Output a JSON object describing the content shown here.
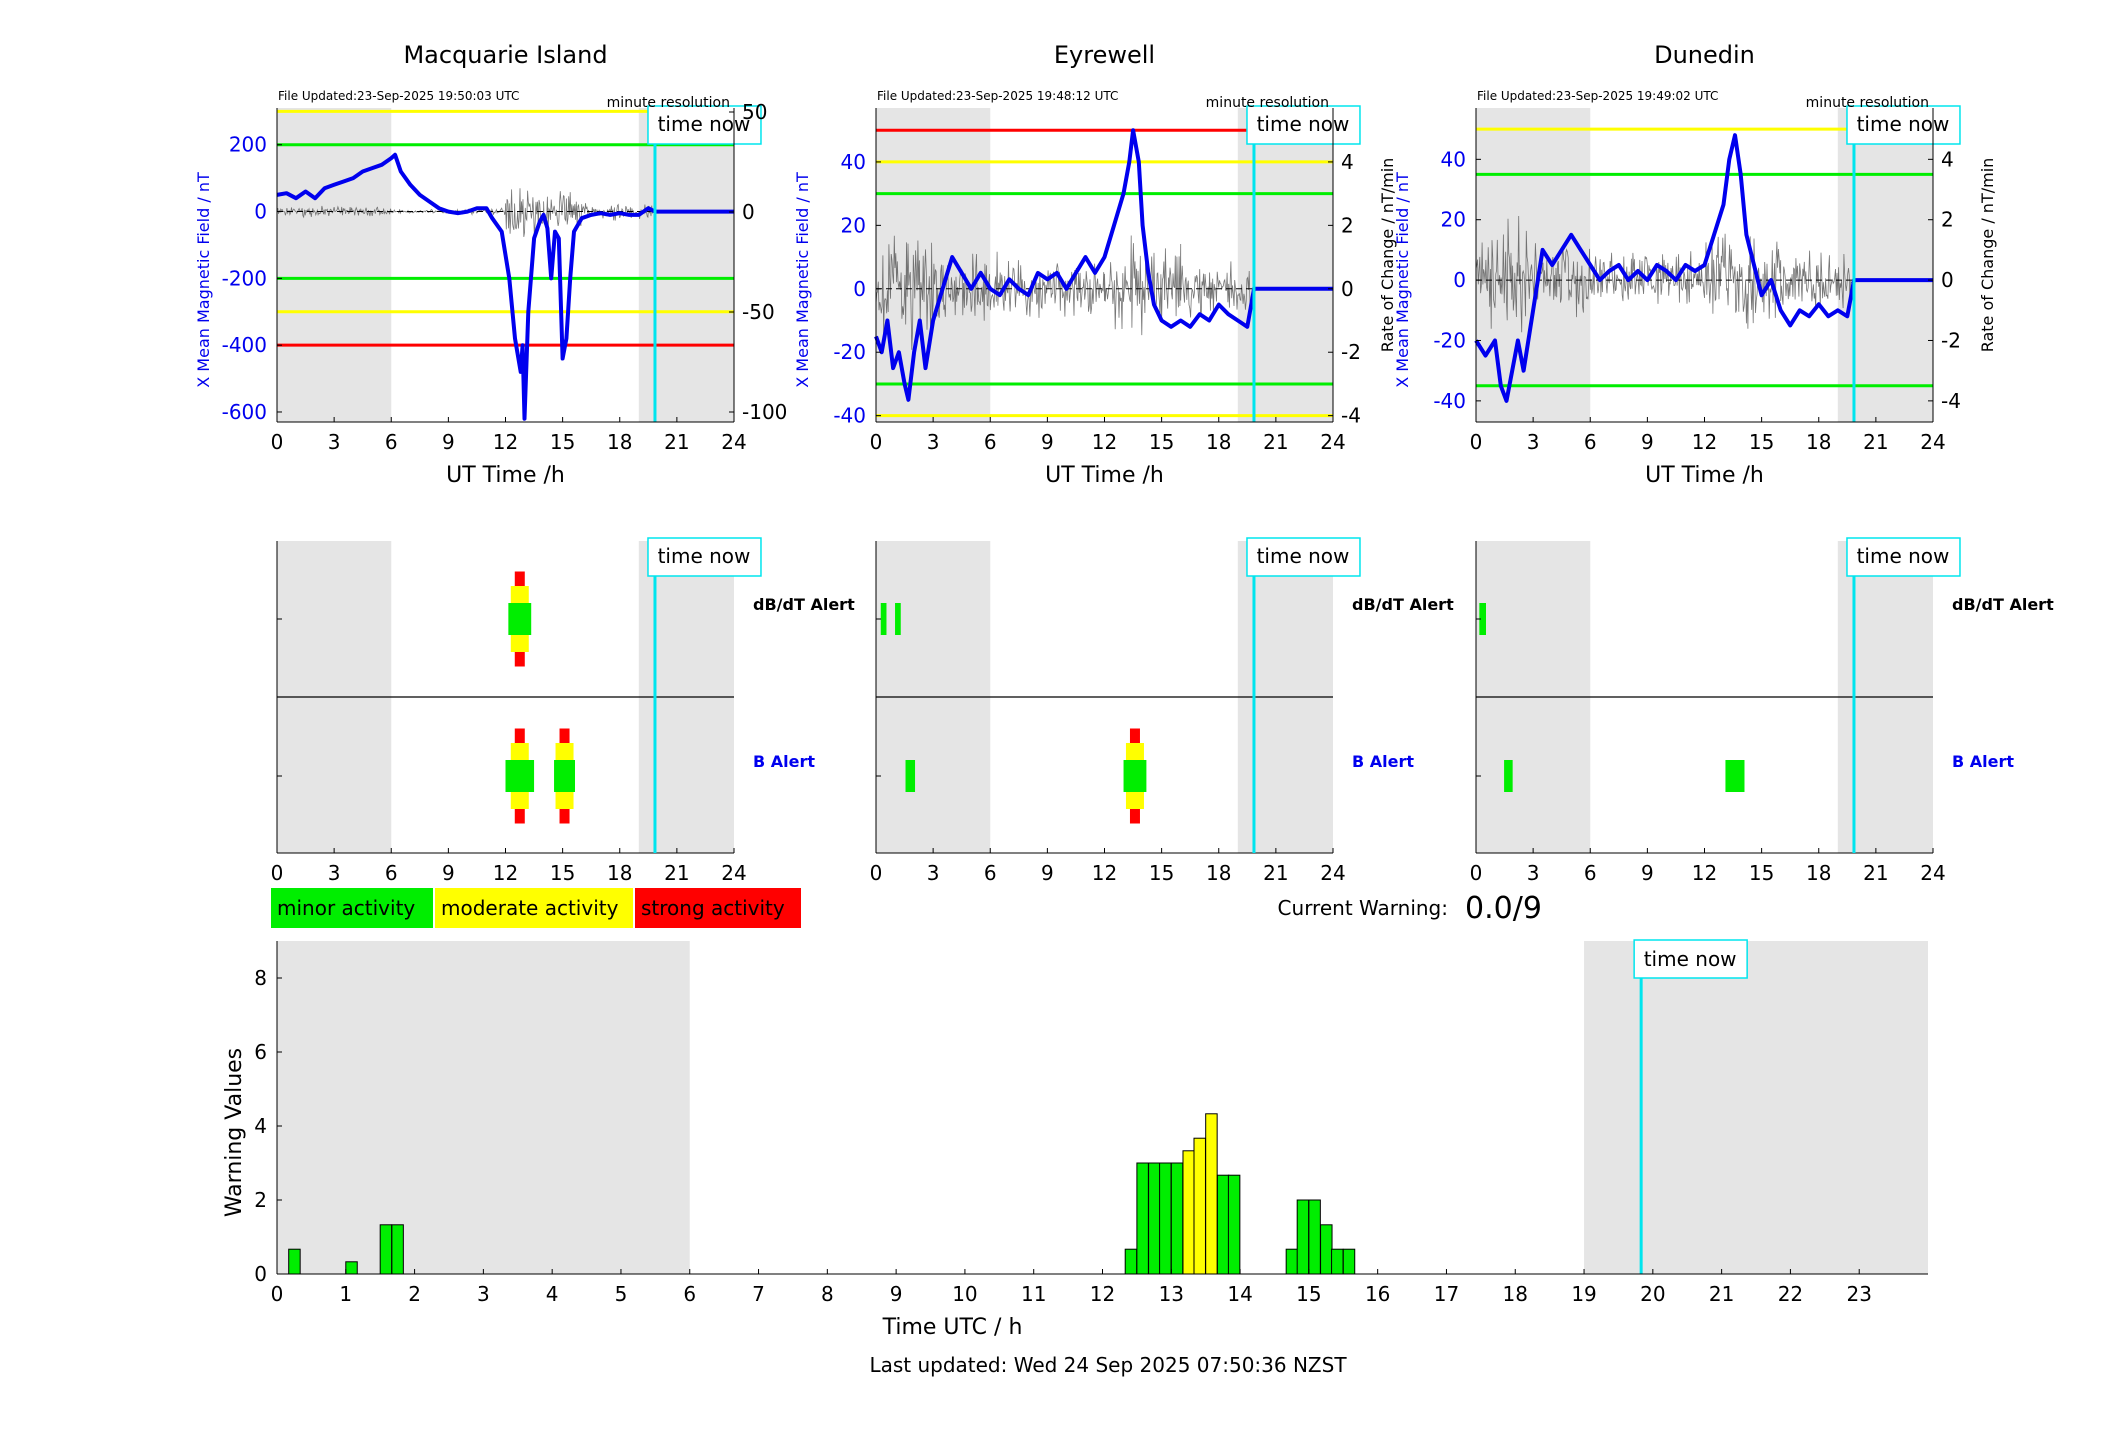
{
  "colors": {
    "shade": "#e5e5e5",
    "minor": "#00ee00",
    "moderate": "#ffff00",
    "strong": "#ff0000",
    "field": "#0000ee",
    "axis_blue": "#0000ee",
    "time_now": "#00e5ee",
    "grid_line": "#00ee00"
  },
  "labels": {
    "x_axis": "UT Time /h",
    "left_y_axis": "X Mean Magnetic Field / nT",
    "right_y_axis": "Rate of Change / nT/min",
    "time_now": "time now",
    "minute_resolution": "minute resolution",
    "dbdt_alert": "dB/dT Alert",
    "b_alert": "B Alert",
    "current_warning_label": "Current Warning:",
    "current_warning_value": "0.0/9",
    "bottom_xlabel": "Time UTC / h",
    "bottom_ylabel": "Warning Values",
    "last_updated": "Last updated: Wed 24 Sep 2025 07:50:36 NZST"
  },
  "legend": [
    {
      "label": "minor activity",
      "color": "#00ee00"
    },
    {
      "label": "moderate activity",
      "color": "#ffff00"
    },
    {
      "label": "strong activity",
      "color": "#ff0000"
    }
  ],
  "chart_data": [
    {
      "type": "line",
      "title": "Macquarie Island",
      "file_updated": "File Updated:23-Sep-2025 19:50:03 UTC",
      "xlabel": "UT Time /h",
      "ylabel": "X Mean Magnetic Field / nT",
      "ylabel_right": "",
      "xlim": [
        0,
        24
      ],
      "ylim": [
        -630,
        310
      ],
      "ylim_right": [
        -105,
        52
      ],
      "xticks": [
        0,
        3,
        6,
        9,
        12,
        15,
        18,
        21,
        24
      ],
      "yticks": [
        200,
        0,
        -200,
        -400,
        -600
      ],
      "yticks_right": [
        50,
        0,
        -50,
        -100
      ],
      "shaded": [
        [
          0,
          6
        ],
        [
          19,
          24
        ]
      ],
      "time_now": 19.85,
      "thresholds": [
        {
          "value": 300,
          "color": "#ffff00"
        },
        {
          "value": 200,
          "color": "#00ee00"
        },
        {
          "value": -200,
          "color": "#00ee00"
        },
        {
          "value": -300,
          "color": "#ffff00"
        },
        {
          "value": -400,
          "color": "#ff0000"
        }
      ],
      "field": [
        [
          0,
          50
        ],
        [
          0.5,
          55
        ],
        [
          1,
          40
        ],
        [
          1.5,
          60
        ],
        [
          2,
          40
        ],
        [
          2.5,
          70
        ],
        [
          3,
          80
        ],
        [
          3.5,
          90
        ],
        [
          4,
          100
        ],
        [
          4.5,
          120
        ],
        [
          5,
          130
        ],
        [
          5.5,
          140
        ],
        [
          6,
          160
        ],
        [
          6.2,
          170
        ],
        [
          6.5,
          120
        ],
        [
          7,
          80
        ],
        [
          7.5,
          50
        ],
        [
          8,
          30
        ],
        [
          8.5,
          10
        ],
        [
          9,
          0
        ],
        [
          9.5,
          -5
        ],
        [
          10,
          0
        ],
        [
          10.5,
          10
        ],
        [
          11,
          10
        ],
        [
          11.3,
          -20
        ],
        [
          11.8,
          -60
        ],
        [
          12.2,
          -200
        ],
        [
          12.5,
          -380
        ],
        [
          12.8,
          -480
        ],
        [
          12.9,
          -400
        ],
        [
          13,
          -620
        ],
        [
          13.2,
          -300
        ],
        [
          13.5,
          -80
        ],
        [
          13.8,
          -30
        ],
        [
          14,
          -10
        ],
        [
          14.2,
          -50
        ],
        [
          14.4,
          -200
        ],
        [
          14.6,
          -60
        ],
        [
          14.8,
          -80
        ],
        [
          15,
          -440
        ],
        [
          15.2,
          -380
        ],
        [
          15.4,
          -200
        ],
        [
          15.6,
          -60
        ],
        [
          16,
          -20
        ],
        [
          16.5,
          -10
        ],
        [
          17,
          -5
        ],
        [
          17.5,
          -10
        ],
        [
          18,
          -5
        ],
        [
          18.5,
          -10
        ],
        [
          19,
          -10
        ],
        [
          19.5,
          10
        ],
        [
          19.85,
          0
        ],
        [
          24,
          0
        ]
      ],
      "noise_segments": [
        [
          0,
          6,
          15
        ],
        [
          6,
          10,
          6
        ],
        [
          10,
          12,
          10
        ],
        [
          12,
          14,
          80
        ],
        [
          14,
          16,
          55
        ],
        [
          16,
          19.85,
          25
        ]
      ]
    },
    {
      "type": "line",
      "title": "Eyrewell",
      "file_updated": "File Updated:23-Sep-2025 19:48:12 UTC",
      "xlabel": "UT Time /h",
      "ylabel": "X Mean Magnetic Field / nT",
      "ylabel_right": "Rate of Change / nT/min",
      "xlim": [
        0,
        24
      ],
      "ylim": [
        -42,
        57
      ],
      "ylim_right": [
        -4.2,
        5.7
      ],
      "xticks": [
        0,
        3,
        6,
        9,
        12,
        15,
        18,
        21,
        24
      ],
      "yticks": [
        40,
        20,
        0,
        -20,
        -40
      ],
      "yticks_right": [
        4,
        2,
        0,
        -2,
        -4
      ],
      "shaded": [
        [
          0,
          6
        ],
        [
          19,
          24
        ]
      ],
      "time_now": 19.85,
      "thresholds": [
        {
          "value": 50,
          "color": "#ff0000"
        },
        {
          "value": 40,
          "color": "#ffff00"
        },
        {
          "value": 30,
          "color": "#00ee00"
        },
        {
          "value": -30,
          "color": "#00ee00"
        },
        {
          "value": -40,
          "color": "#ffff00"
        }
      ],
      "field": [
        [
          0,
          -15
        ],
        [
          0.3,
          -20
        ],
        [
          0.6,
          -10
        ],
        [
          0.9,
          -25
        ],
        [
          1.2,
          -20
        ],
        [
          1.5,
          -30
        ],
        [
          1.7,
          -35
        ],
        [
          2,
          -20
        ],
        [
          2.3,
          -10
        ],
        [
          2.6,
          -25
        ],
        [
          3,
          -10
        ],
        [
          3.5,
          0
        ],
        [
          4,
          10
        ],
        [
          4.5,
          5
        ],
        [
          5,
          0
        ],
        [
          5.5,
          5
        ],
        [
          6,
          0
        ],
        [
          6.5,
          -2
        ],
        [
          7,
          3
        ],
        [
          7.5,
          0
        ],
        [
          8,
          -2
        ],
        [
          8.5,
          5
        ],
        [
          9,
          3
        ],
        [
          9.5,
          5
        ],
        [
          10,
          0
        ],
        [
          10.5,
          5
        ],
        [
          11,
          10
        ],
        [
          11.5,
          5
        ],
        [
          12,
          10
        ],
        [
          12.5,
          20
        ],
        [
          13,
          30
        ],
        [
          13.3,
          40
        ],
        [
          13.5,
          50
        ],
        [
          13.8,
          40
        ],
        [
          14,
          20
        ],
        [
          14.3,
          5
        ],
        [
          14.6,
          -5
        ],
        [
          15,
          -10
        ],
        [
          15.5,
          -12
        ],
        [
          16,
          -10
        ],
        [
          16.5,
          -12
        ],
        [
          17,
          -8
        ],
        [
          17.5,
          -10
        ],
        [
          18,
          -5
        ],
        [
          18.5,
          -8
        ],
        [
          19,
          -10
        ],
        [
          19.5,
          -12
        ],
        [
          19.85,
          0
        ],
        [
          24,
          0
        ]
      ],
      "noise_segments": [
        [
          0,
          3,
          18
        ],
        [
          3,
          7,
          10
        ],
        [
          7,
          12,
          8
        ],
        [
          12,
          16,
          14
        ],
        [
          16,
          19.85,
          8
        ]
      ]
    },
    {
      "type": "line",
      "title": "Dunedin",
      "file_updated": "File Updated:23-Sep-2025 19:49:02 UTC",
      "xlabel": "UT Time /h",
      "ylabel": "X Mean Magnetic Field / nT",
      "ylabel_right": "Rate of Change / nT/min",
      "xlim": [
        0,
        24
      ],
      "ylim": [
        -47,
        57
      ],
      "ylim_right": [
        -4.7,
        5.7
      ],
      "xticks": [
        0,
        3,
        6,
        9,
        12,
        15,
        18,
        21,
        24
      ],
      "yticks": [
        40,
        20,
        0,
        -20,
        -40
      ],
      "yticks_right": [
        4,
        2,
        0,
        -2,
        -4
      ],
      "shaded": [
        [
          0,
          6
        ],
        [
          19,
          24
        ]
      ],
      "time_now": 19.85,
      "thresholds": [
        {
          "value": 50,
          "color": "#ffff00"
        },
        {
          "value": 35,
          "color": "#00ee00"
        },
        {
          "value": -35,
          "color": "#00ee00"
        }
      ],
      "field": [
        [
          0,
          -20
        ],
        [
          0.5,
          -25
        ],
        [
          1,
          -20
        ],
        [
          1.3,
          -35
        ],
        [
          1.6,
          -40
        ],
        [
          1.9,
          -30
        ],
        [
          2.2,
          -20
        ],
        [
          2.5,
          -30
        ],
        [
          3,
          -10
        ],
        [
          3.5,
          10
        ],
        [
          4,
          5
        ],
        [
          4.5,
          10
        ],
        [
          5,
          15
        ],
        [
          5.5,
          10
        ],
        [
          6,
          5
        ],
        [
          6.5,
          0
        ],
        [
          7,
          3
        ],
        [
          7.5,
          5
        ],
        [
          8,
          0
        ],
        [
          8.5,
          3
        ],
        [
          9,
          0
        ],
        [
          9.5,
          5
        ],
        [
          10,
          3
        ],
        [
          10.5,
          0
        ],
        [
          11,
          5
        ],
        [
          11.5,
          3
        ],
        [
          12,
          5
        ],
        [
          12.5,
          15
        ],
        [
          13,
          25
        ],
        [
          13.3,
          40
        ],
        [
          13.6,
          48
        ],
        [
          13.9,
          35
        ],
        [
          14.2,
          15
        ],
        [
          14.6,
          5
        ],
        [
          15,
          -5
        ],
        [
          15.5,
          0
        ],
        [
          16,
          -10
        ],
        [
          16.5,
          -15
        ],
        [
          17,
          -10
        ],
        [
          17.5,
          -12
        ],
        [
          18,
          -8
        ],
        [
          18.5,
          -12
        ],
        [
          19,
          -10
        ],
        [
          19.5,
          -12
        ],
        [
          19.85,
          0
        ],
        [
          24,
          0
        ]
      ],
      "noise_segments": [
        [
          0,
          3,
          18
        ],
        [
          3,
          7,
          10
        ],
        [
          7,
          12,
          8
        ],
        [
          12,
          16,
          14
        ],
        [
          16,
          19.85,
          8
        ]
      ]
    }
  ],
  "alert_panels": [
    {
      "dbdt": [
        {
          "t": 12.75,
          "w": 1.2,
          "level": "minor",
          "strong": true,
          "moderate": true
        }
      ],
      "b": [
        {
          "t": 12.75,
          "w": 1.5,
          "level": "minor",
          "strong": true,
          "moderate": true
        },
        {
          "t": 15.1,
          "w": 1.1,
          "level": "minor",
          "strong": true,
          "moderate": true
        }
      ]
    },
    {
      "dbdt": [
        {
          "t": 0.4,
          "w": 0.3,
          "level": "minor"
        },
        {
          "t": 1.15,
          "w": 0.3,
          "level": "minor"
        }
      ],
      "b": [
        {
          "t": 1.8,
          "w": 0.5,
          "level": "minor"
        },
        {
          "t": 13.6,
          "w": 1.2,
          "level": "minor",
          "strong": true,
          "moderate": true
        }
      ]
    },
    {
      "dbdt": [
        {
          "t": 0.35,
          "w": 0.35,
          "level": "minor"
        }
      ],
      "b": [
        {
          "t": 1.7,
          "w": 0.45,
          "level": "minor"
        },
        {
          "t": 13.6,
          "w": 1.0,
          "level": "minor"
        }
      ]
    }
  ],
  "warning_chart": {
    "type": "bar",
    "xlabel": "Time UTC / h",
    "ylabel": "Warning Values",
    "xlim": [
      0,
      24
    ],
    "ylim": [
      0,
      9
    ],
    "xticks": [
      0,
      1,
      2,
      3,
      4,
      5,
      6,
      7,
      8,
      9,
      10,
      11,
      12,
      13,
      14,
      15,
      16,
      17,
      18,
      19,
      20,
      21,
      22,
      23
    ],
    "yticks": [
      0,
      2,
      4,
      6,
      8
    ],
    "shaded": [
      [
        0,
        6
      ],
      [
        19,
        24
      ]
    ],
    "time_now": 19.83,
    "bar_width": 0.1667,
    "bars": [
      {
        "x": 0.17,
        "value": 0.67,
        "level": "minor"
      },
      {
        "x": 1.0,
        "value": 0.33,
        "level": "minor"
      },
      {
        "x": 1.5,
        "value": 1.33,
        "level": "minor"
      },
      {
        "x": 1.67,
        "value": 1.33,
        "level": "minor"
      },
      {
        "x": 12.33,
        "value": 0.67,
        "level": "minor"
      },
      {
        "x": 12.5,
        "value": 3.0,
        "level": "minor"
      },
      {
        "x": 12.67,
        "value": 3.0,
        "level": "minor"
      },
      {
        "x": 12.83,
        "value": 3.0,
        "level": "minor"
      },
      {
        "x": 13.0,
        "value": 3.0,
        "level": "minor"
      },
      {
        "x": 13.17,
        "value": 3.33,
        "level": "moderate"
      },
      {
        "x": 13.33,
        "value": 3.67,
        "level": "moderate"
      },
      {
        "x": 13.5,
        "value": 4.33,
        "level": "moderate"
      },
      {
        "x": 13.67,
        "value": 2.67,
        "level": "minor"
      },
      {
        "x": 13.83,
        "value": 2.67,
        "level": "minor"
      },
      {
        "x": 14.67,
        "value": 0.67,
        "level": "minor"
      },
      {
        "x": 14.83,
        "value": 2.0,
        "level": "minor"
      },
      {
        "x": 15.0,
        "value": 2.0,
        "level": "minor"
      },
      {
        "x": 15.17,
        "value": 1.33,
        "level": "minor"
      },
      {
        "x": 15.33,
        "value": 0.67,
        "level": "minor"
      },
      {
        "x": 15.5,
        "value": 0.67,
        "level": "minor"
      }
    ]
  }
}
